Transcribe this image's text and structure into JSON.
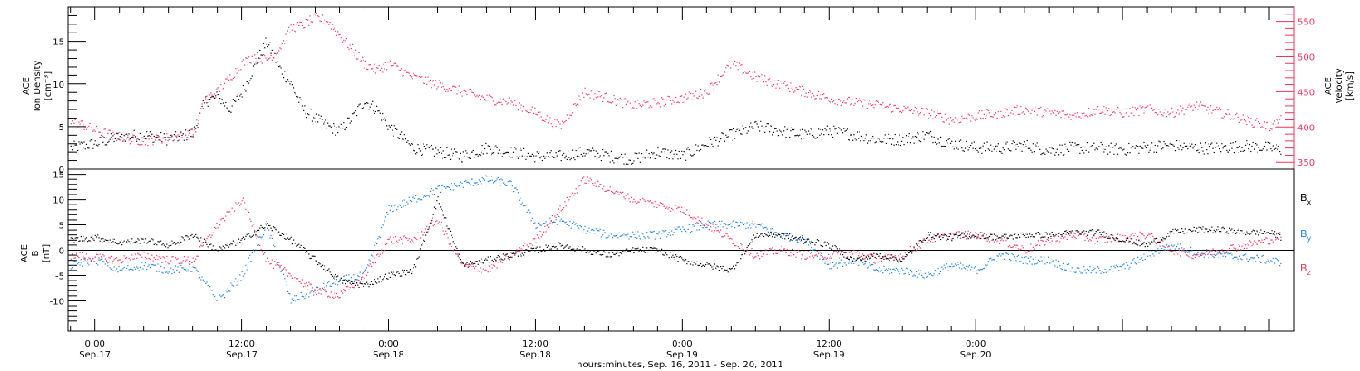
{
  "chart_data": [
    {
      "type": "scatter",
      "panel": "top",
      "ylabel_left": [
        "ACE",
        "Ion Density",
        "[cm⁻³]"
      ],
      "ylabel_right": [
        "ACE",
        "Velocity",
        "[km/s]"
      ],
      "x_unit": "hours since Sep.16 00:00",
      "xlim": [
        21.8,
        122.0
      ],
      "ylim_left": [
        0,
        19
      ],
      "ylim_right": [
        340,
        570
      ],
      "yticks_left": [
        "0",
        "5",
        "10",
        "15"
      ],
      "yticks_right": [
        "350",
        "400",
        "450",
        "500",
        "550"
      ],
      "series": [
        {
          "name": "Ion Density",
          "axis": "left",
          "color": "#000000",
          "x": [
            22,
            24,
            26,
            28,
            30,
            32,
            33,
            34,
            35,
            36,
            37,
            38,
            39,
            40,
            41,
            42,
            43,
            44,
            45,
            46,
            47,
            48,
            50,
            52,
            54,
            56,
            58,
            60,
            62,
            64,
            66,
            68,
            70,
            72,
            74,
            76,
            78,
            80,
            82,
            84,
            86,
            88,
            90,
            92,
            94,
            96,
            98,
            100,
            102,
            104,
            106,
            108,
            110,
            112,
            114,
            116,
            118,
            120,
            121
          ],
          "y": [
            2.5,
            3,
            3.8,
            4,
            3.5,
            4.2,
            8,
            8.5,
            7,
            9,
            12,
            15,
            12,
            10,
            7,
            6,
            5,
            4.5,
            6,
            8,
            7,
            5,
            2.5,
            2,
            1.5,
            2.5,
            2,
            1.5,
            1.5,
            2,
            1.5,
            1.2,
            2,
            1.5,
            3,
            4,
            5,
            4.5,
            4,
            4.5,
            4,
            3.5,
            3.5,
            4,
            3,
            2.5,
            2.5,
            2.8,
            2.2,
            2.5,
            2.5,
            2.3,
            2.6,
            2.8,
            2.5,
            2.5,
            2.7,
            2.5,
            2.2
          ]
        },
        {
          "name": "Velocity",
          "axis": "right",
          "color": "#e8365d",
          "x": [
            22,
            24,
            26,
            28,
            30,
            32,
            33,
            34,
            35,
            36,
            37,
            38,
            39,
            40,
            41,
            42,
            43,
            44,
            45,
            46,
            47,
            48,
            50,
            52,
            54,
            56,
            58,
            60,
            62,
            64,
            66,
            68,
            70,
            72,
            74,
            76,
            78,
            80,
            82,
            84,
            86,
            88,
            90,
            92,
            94,
            96,
            98,
            100,
            102,
            104,
            106,
            108,
            110,
            112,
            114,
            116,
            118,
            120,
            121
          ],
          "y": [
            410,
            395,
            385,
            380,
            385,
            390,
            440,
            450,
            470,
            490,
            500,
            495,
            510,
            540,
            545,
            555,
            550,
            530,
            510,
            490,
            480,
            490,
            470,
            460,
            450,
            440,
            435,
            420,
            400,
            450,
            440,
            430,
            435,
            440,
            450,
            490,
            470,
            460,
            450,
            440,
            435,
            430,
            425,
            420,
            410,
            415,
            420,
            425,
            420,
            415,
            425,
            420,
            425,
            420,
            430,
            420,
            410,
            400,
            410
          ]
        }
      ]
    },
    {
      "type": "scatter",
      "panel": "bottom",
      "ylabel_left": [
        "ACE",
        "B",
        "[nT]"
      ],
      "x_unit": "hours since Sep.16 00:00",
      "xlim": [
        21.8,
        122.0
      ],
      "ylim": [
        -16,
        16
      ],
      "yticks": [
        "-10",
        "-5",
        "0",
        "5",
        "10",
        "15"
      ],
      "zero_line": true,
      "legend_placement": "right",
      "series": [
        {
          "name": "Bx",
          "color": "#000000",
          "x": [
            22,
            24,
            26,
            28,
            30,
            32,
            34,
            36,
            38,
            40,
            42,
            44,
            46,
            48,
            50,
            52,
            54,
            56,
            58,
            60,
            62,
            64,
            66,
            68,
            70,
            72,
            74,
            76,
            78,
            80,
            82,
            84,
            86,
            88,
            90,
            92,
            94,
            96,
            98,
            100,
            102,
            104,
            106,
            108,
            110,
            112,
            114,
            116,
            118,
            120,
            121
          ],
          "y": [
            2,
            2.5,
            1.5,
            2,
            1,
            3,
            0,
            2,
            5,
            2,
            -2,
            -6,
            -7,
            -5,
            -4,
            10,
            -3,
            -2,
            -1,
            0,
            1,
            0,
            -1,
            0,
            0,
            -2,
            -3,
            -4,
            3,
            3,
            2,
            1,
            -2,
            -1,
            -2,
            3,
            2.5,
            3,
            2.5,
            3,
            3,
            3.5,
            3.5,
            2,
            1,
            3.5,
            4,
            4,
            3.5,
            3.5,
            2.5
          ]
        },
        {
          "name": "By",
          "color": "#1f7fde",
          "x": [
            22,
            24,
            26,
            28,
            30,
            32,
            34,
            36,
            38,
            40,
            42,
            44,
            46,
            48,
            50,
            52,
            54,
            56,
            58,
            60,
            62,
            64,
            66,
            68,
            70,
            72,
            74,
            76,
            78,
            80,
            82,
            84,
            86,
            88,
            90,
            92,
            94,
            96,
            98,
            100,
            102,
            104,
            106,
            108,
            110,
            112,
            114,
            116,
            118,
            120,
            121
          ],
          "y": [
            -3,
            -2,
            -4,
            -3,
            -4,
            -3.5,
            -10,
            -5,
            5,
            -10,
            -8,
            -6,
            -5,
            8,
            10,
            12,
            13,
            14,
            13,
            5,
            6,
            4,
            3,
            3,
            3,
            4,
            5,
            5,
            5,
            3,
            2,
            -3,
            -2,
            -4,
            -4,
            -5,
            -3,
            -4,
            -1,
            -2,
            -2,
            -4,
            -4,
            -3.5,
            -1,
            1,
            -0.5,
            -1,
            -1.5,
            -2,
            -2.5
          ]
        },
        {
          "name": "Bz",
          "color": "#e8365d",
          "x": [
            22,
            24,
            26,
            28,
            30,
            32,
            34,
            36,
            38,
            40,
            42,
            44,
            46,
            48,
            50,
            52,
            54,
            56,
            58,
            60,
            62,
            64,
            66,
            68,
            70,
            72,
            74,
            76,
            78,
            80,
            82,
            84,
            86,
            88,
            90,
            92,
            94,
            96,
            98,
            100,
            102,
            104,
            106,
            108,
            110,
            112,
            114,
            116,
            118,
            120,
            121
          ],
          "y": [
            -1,
            -1.5,
            -2,
            -1,
            -2,
            -2,
            5,
            10,
            -2,
            -5,
            -8,
            -9,
            -5,
            2,
            2,
            6,
            -3,
            -4,
            -1,
            2,
            8,
            14,
            12,
            10,
            9,
            8,
            5,
            2,
            -1,
            0,
            -1,
            -1,
            -0.5,
            -2,
            -1,
            2,
            3,
            3,
            2,
            0,
            2,
            3,
            2,
            2.5,
            3,
            0,
            -1,
            0,
            1,
            2,
            3
          ]
        }
      ],
      "legend": [
        {
          "label": "B",
          "sub": "x",
          "color": "#000000"
        },
        {
          "label": "B",
          "sub": "y",
          "color": "#1f7fde"
        },
        {
          "label": "B",
          "sub": "z",
          "color": "#e8365d"
        }
      ]
    }
  ],
  "x_axis": {
    "ticks": [
      {
        "hours": 24,
        "label1": "0:00",
        "label2": "Sep.17"
      },
      {
        "hours": 36,
        "label1": "12:00",
        "label2": "Sep.17"
      },
      {
        "hours": 48,
        "label1": "0:00",
        "label2": "Sep.18"
      },
      {
        "hours": 60,
        "label1": "12:00",
        "label2": "Sep.18"
      },
      {
        "hours": 72,
        "label1": "0:00",
        "label2": "Sep.19"
      },
      {
        "hours": 84,
        "label1": "12:00",
        "label2": "Sep.19"
      },
      {
        "hours": 96,
        "label1": "0:00",
        "label2": "Sep.20"
      }
    ],
    "title": "hours:minutes, Sep. 16, 2011 - Sep. 20, 2011"
  }
}
